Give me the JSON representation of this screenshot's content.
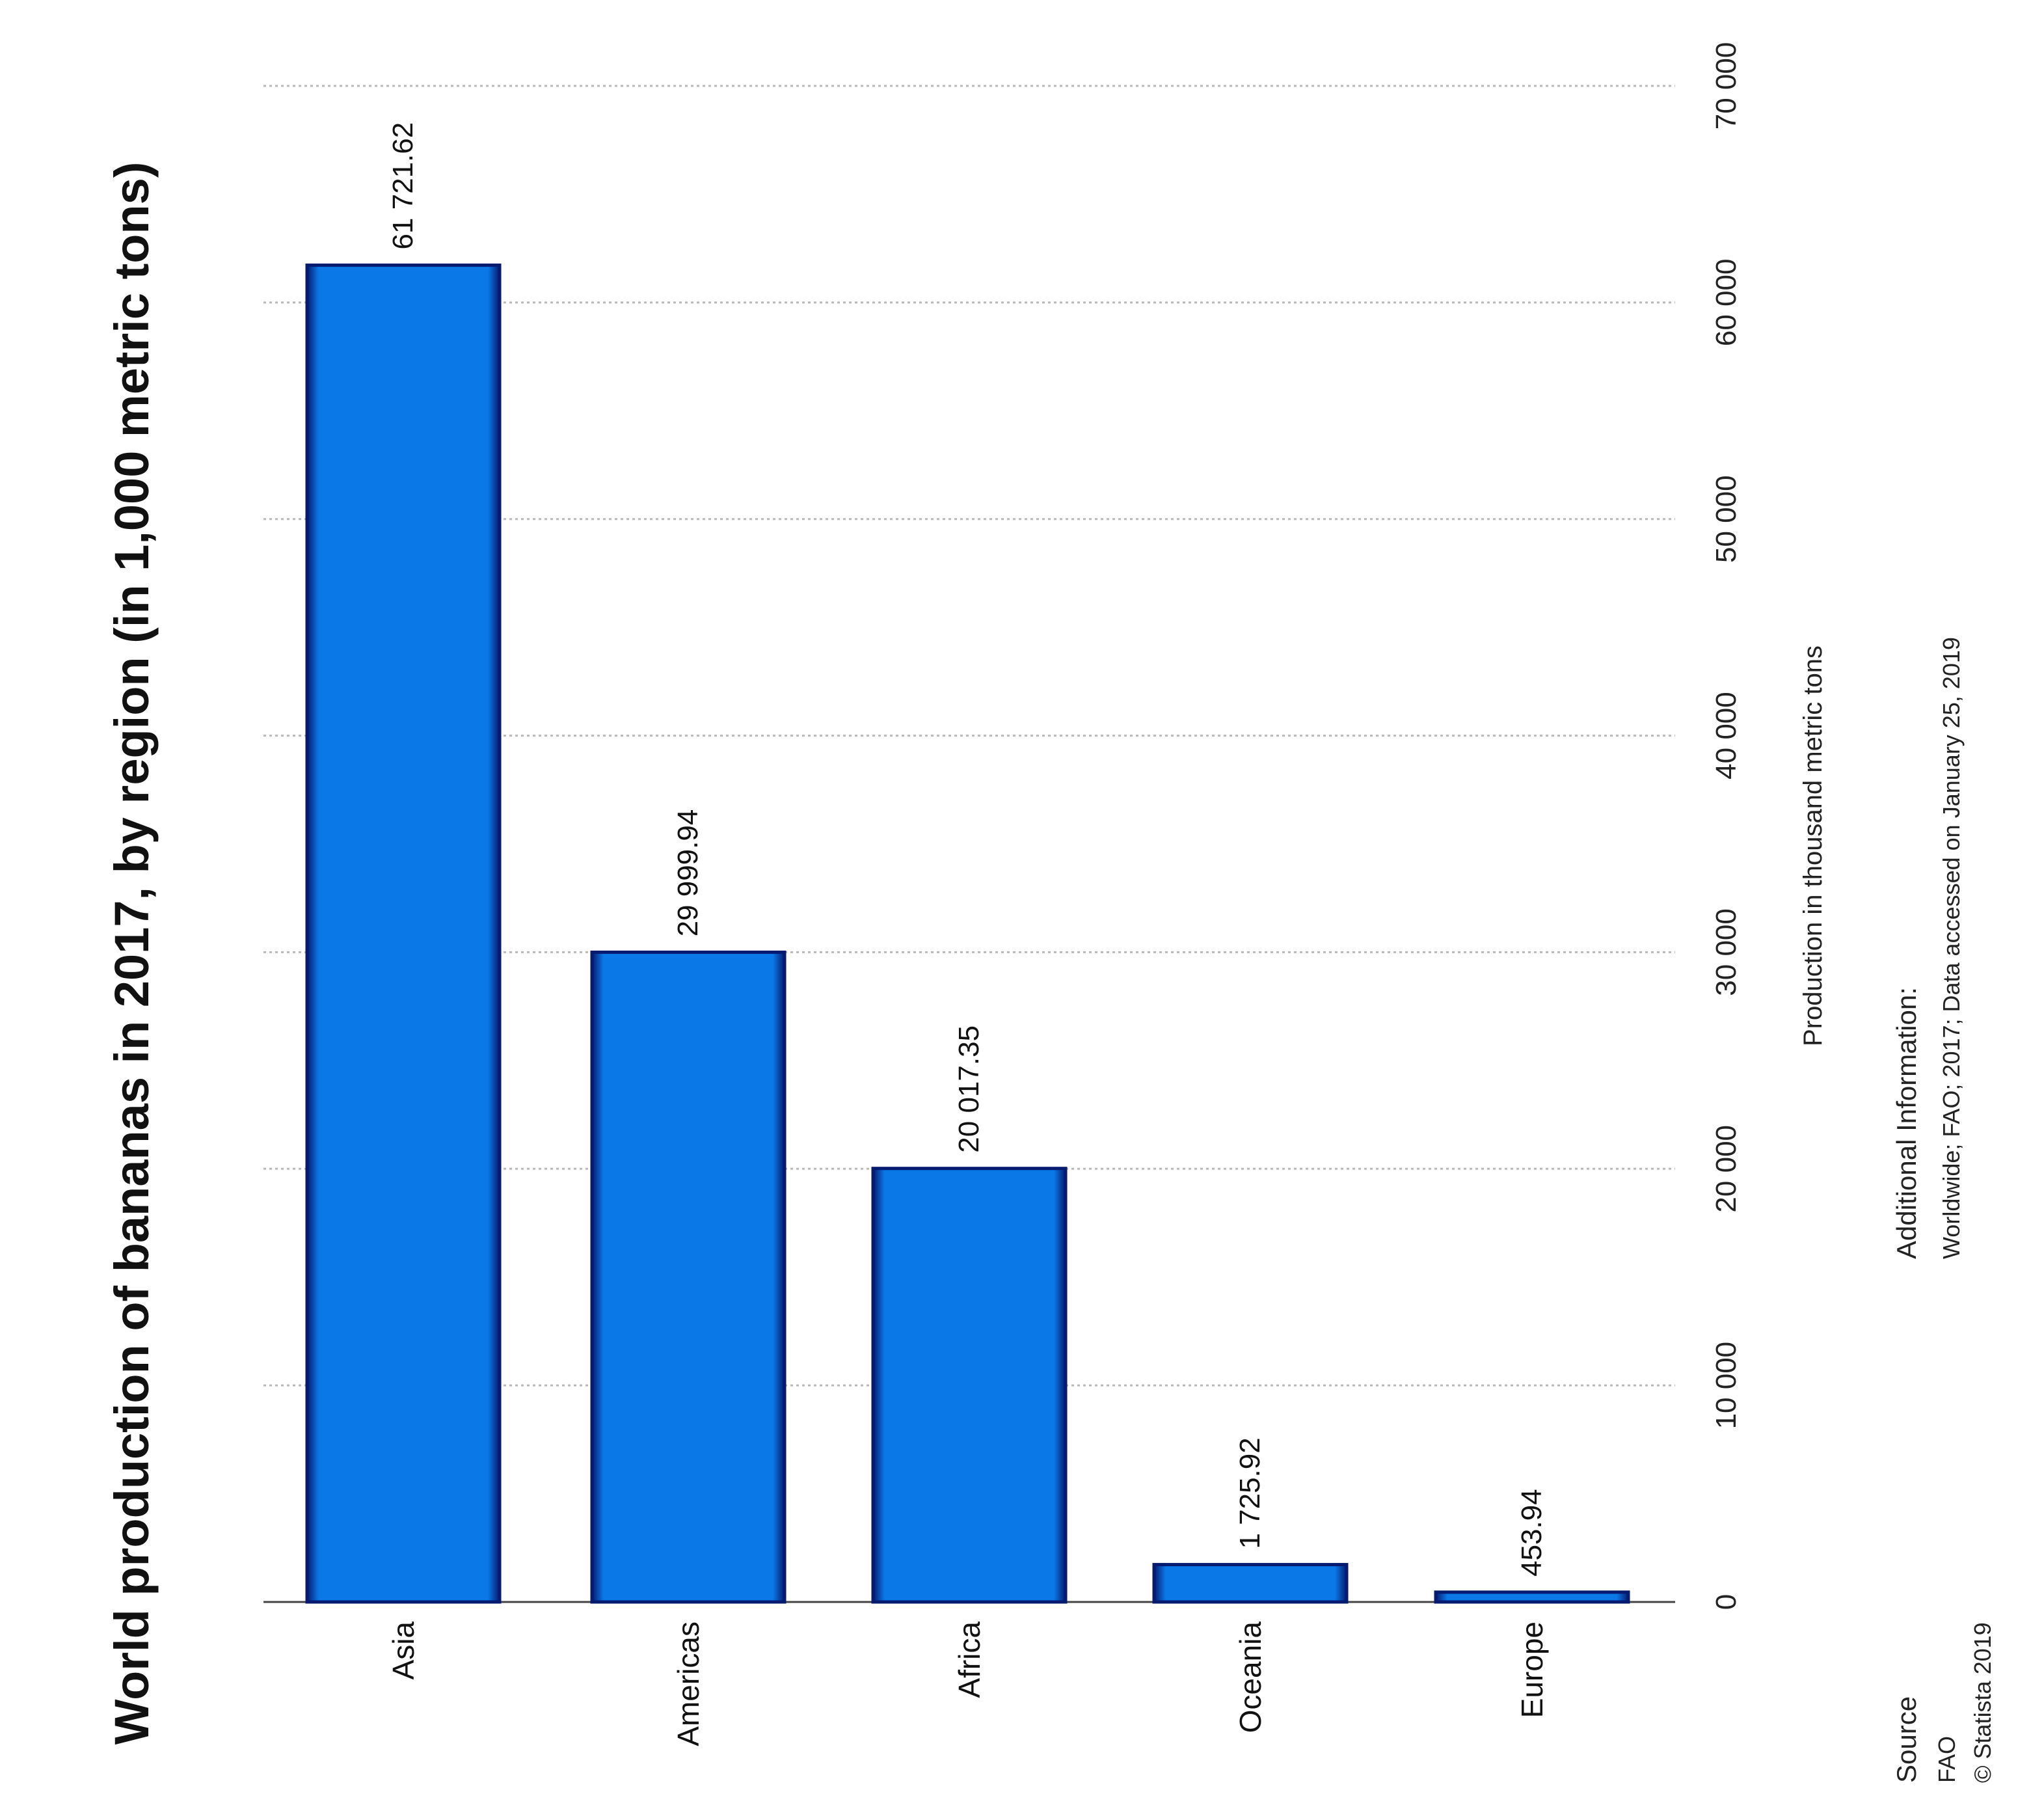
{
  "chart_data": {
    "type": "bar",
    "orientation": "vertical",
    "title": "World production of bananas in 2017, by region (in 1,000 metric tons)",
    "categories": [
      "Asia",
      "Americas",
      "Africa",
      "Oceania",
      "Europe"
    ],
    "values": [
      61721.62,
      29999.94,
      20017.35,
      1725.92,
      453.94
    ],
    "value_labels": [
      "61 721.62",
      "29 999.94",
      "20 017.35",
      "1 725.92",
      "453.94"
    ],
    "ylabel": "Production in thousand metric tons",
    "ylim": [
      0,
      70000
    ],
    "yticks": [
      0,
      10000,
      20000,
      30000,
      40000,
      50000,
      60000,
      70000
    ],
    "ytick_labels": [
      "0",
      "10 000",
      "20 000",
      "30 000",
      "40 000",
      "50 000",
      "60 000",
      "70 000"
    ],
    "grid": true,
    "rotation": "image rotated 90° counter-clockwise",
    "bar_color": "#0a78e6",
    "bar_edge_color": "#061a70"
  },
  "footer": {
    "additional_info_heading": "Additional Information:",
    "additional_info_text": "Worldwide; FAO; 2017; Data accessed on January 25, 2019",
    "source_heading": "Source",
    "source_name": "FAO",
    "copyright": "© Statista 2019"
  }
}
